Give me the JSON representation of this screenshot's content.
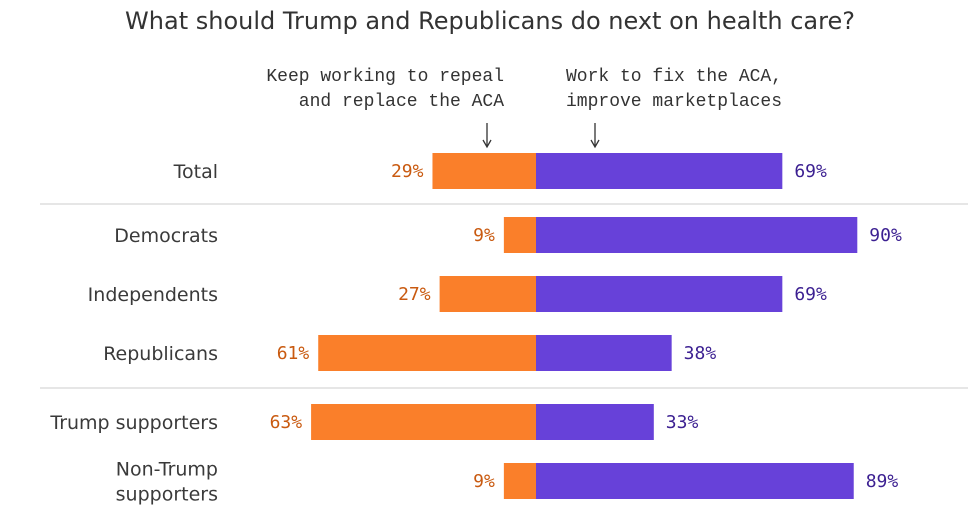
{
  "chart_data": {
    "type": "bar",
    "orientation": "horizontal-diverging",
    "title": "What should Trump and Republicans do next on health care?",
    "annotations": {
      "left": [
        "Keep working to repeal",
        "and replace the ACA"
      ],
      "right": [
        "Work to fix the ACA,",
        "improve marketplaces"
      ]
    },
    "categories": [
      [
        "Total"
      ],
      [
        "Democrats"
      ],
      [
        "Independents"
      ],
      [
        "Republicans"
      ],
      [
        "Trump supporters"
      ],
      [
        "Non-Trump",
        "supporters"
      ]
    ],
    "series": [
      {
        "key": "repeal",
        "values": [
          29,
          9,
          27,
          61,
          63,
          9
        ],
        "labels": [
          "29%",
          "9%",
          "27%",
          "61%",
          "63%",
          "9%"
        ]
      },
      {
        "key": "fix",
        "values": [
          69,
          90,
          69,
          38,
          33,
          89
        ],
        "labels": [
          "69%",
          "90%",
          "69%",
          "38%",
          "33%",
          "89%"
        ]
      }
    ],
    "group_breaks_after": [
      0,
      3
    ],
    "colors": {
      "repeal": "#fa7f2a",
      "fix": "#6741d9",
      "repeal_text": "#c95a10",
      "fix_text": "#3b1f91",
      "divider": "#cccccc"
    }
  }
}
